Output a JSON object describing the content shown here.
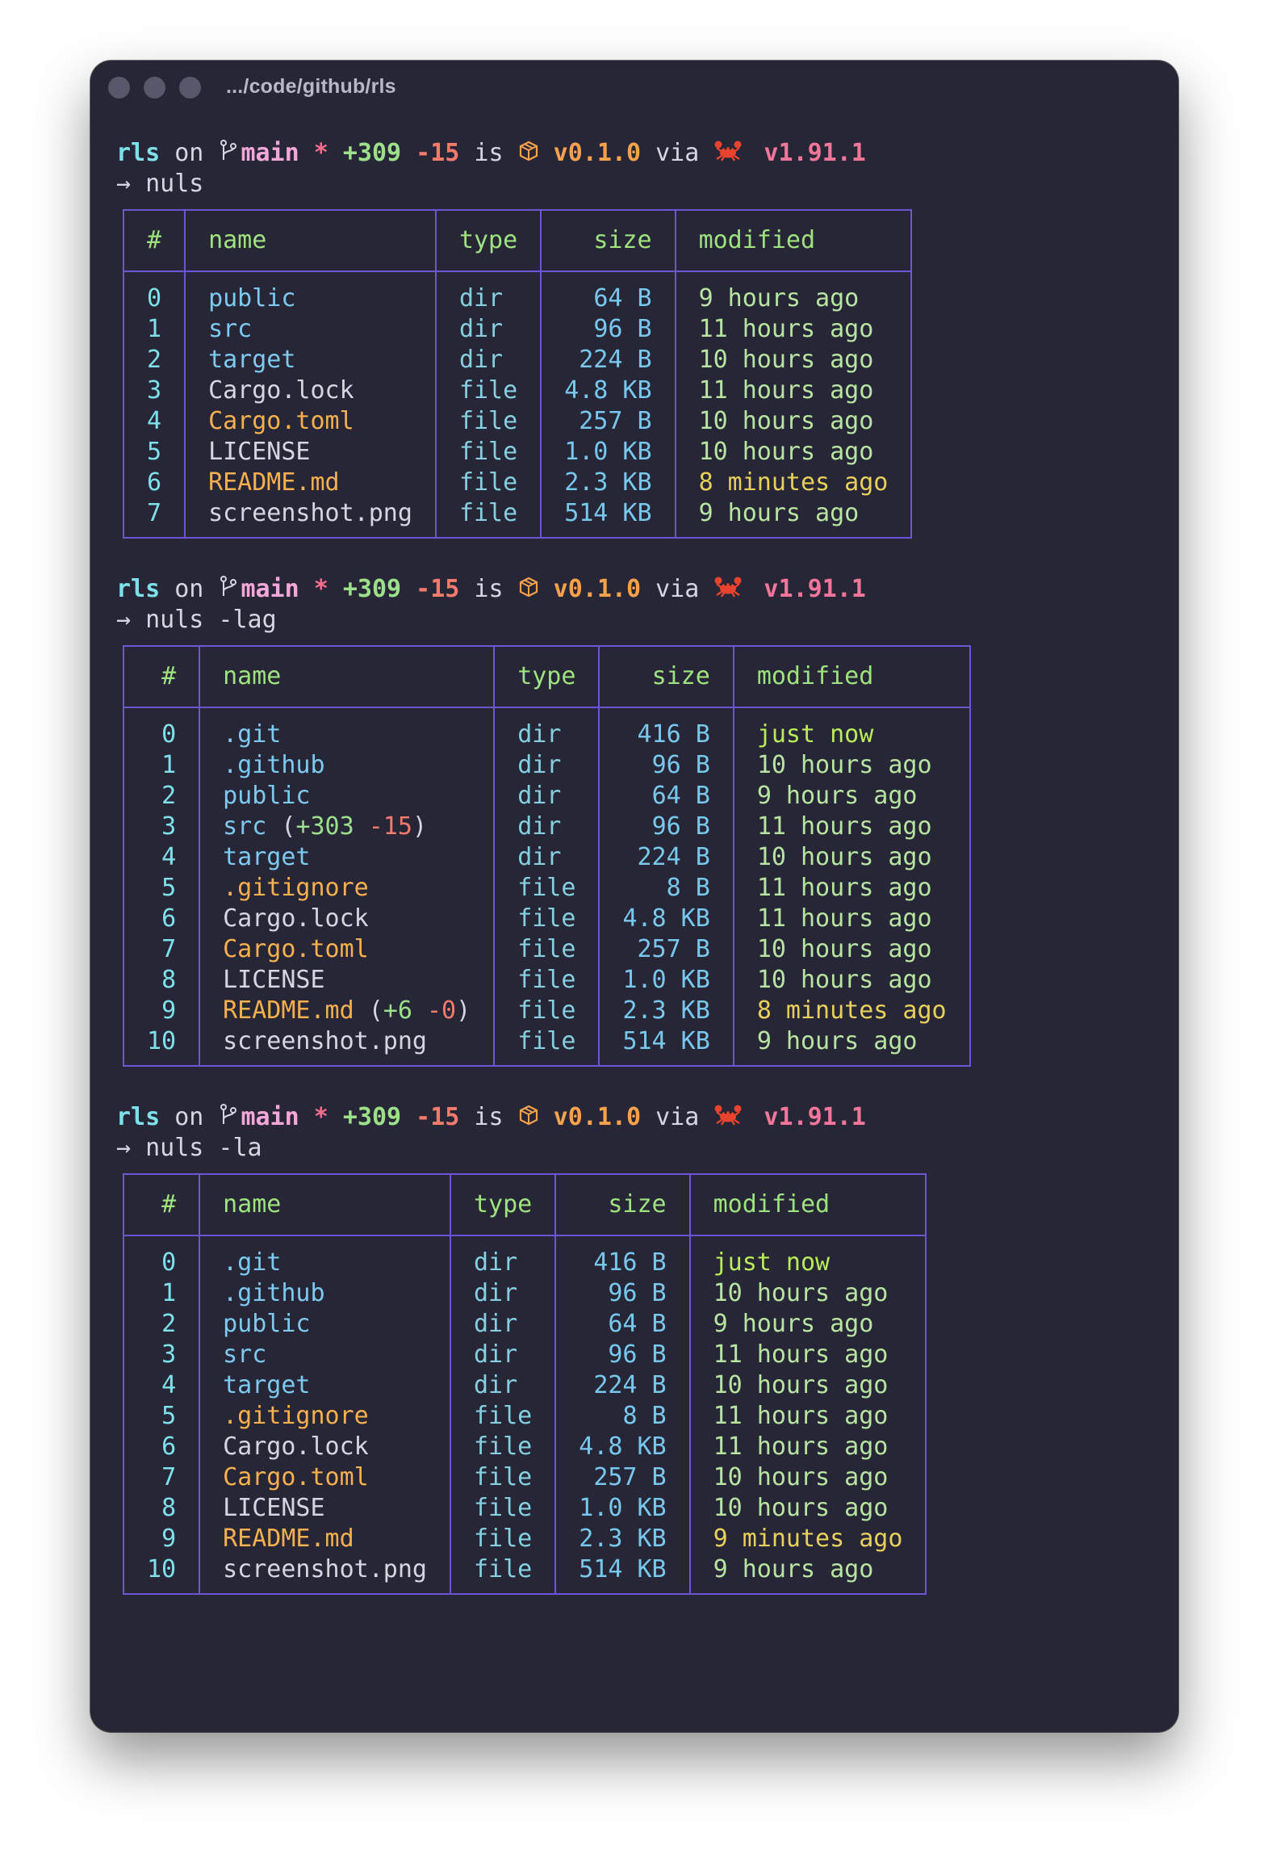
{
  "window": {
    "title": ".../code/github/rls",
    "buttons": [
      "close",
      "minimize",
      "zoom"
    ]
  },
  "prompt": {
    "dir": "rls",
    "on": "on",
    "branch": "main",
    "dirty": "*",
    "added": "+309",
    "removed": "-15",
    "is": "is",
    "pkg_version": "v0.1.0",
    "via": "via",
    "rust_version": "v1.91.1",
    "arrow": "→"
  },
  "headers": {
    "index": "#",
    "name": "name",
    "type": "type",
    "size": "size",
    "modified": "modified"
  },
  "blocks": [
    {
      "command": "nuls",
      "rows": [
        {
          "i": "0",
          "name": "public",
          "type": "dir",
          "size": "64 B",
          "modified": "9 hours ago",
          "nc": "dir",
          "mc": "green"
        },
        {
          "i": "1",
          "name": "src",
          "type": "dir",
          "size": "96 B",
          "modified": "11 hours ago",
          "nc": "dir",
          "mc": "green"
        },
        {
          "i": "2",
          "name": "target",
          "type": "dir",
          "size": "224 B",
          "modified": "10 hours ago",
          "nc": "dir",
          "mc": "green"
        },
        {
          "i": "3",
          "name": "Cargo.lock",
          "type": "file",
          "size": "4.8 KB",
          "modified": "11 hours ago",
          "nc": "plain",
          "mc": "green"
        },
        {
          "i": "4",
          "name": "Cargo.toml",
          "type": "file",
          "size": "257 B",
          "modified": "10 hours ago",
          "nc": "orange",
          "mc": "green"
        },
        {
          "i": "5",
          "name": "LICENSE",
          "type": "file",
          "size": "1.0 KB",
          "modified": "10 hours ago",
          "nc": "plain",
          "mc": "green"
        },
        {
          "i": "6",
          "name": "README.md",
          "type": "file",
          "size": "2.3 KB",
          "modified": "8 minutes ago",
          "nc": "orange",
          "mc": "yellow"
        },
        {
          "i": "7",
          "name": "screenshot.png",
          "type": "file",
          "size": "514 KB",
          "modified": "9 hours ago",
          "nc": "plain",
          "mc": "green"
        }
      ]
    },
    {
      "command": "nuls -lag",
      "rows": [
        {
          "i": "0",
          "name": ".git",
          "type": "dir",
          "size": "416 B",
          "modified": "just now",
          "nc": "dir",
          "mc": "bright"
        },
        {
          "i": "1",
          "name": ".github",
          "type": "dir",
          "size": "96 B",
          "modified": "10 hours ago",
          "nc": "dir",
          "mc": "green"
        },
        {
          "i": "2",
          "name": "public",
          "type": "dir",
          "size": "64 B",
          "modified": "9 hours ago",
          "nc": "dir",
          "mc": "green"
        },
        {
          "i": "3",
          "name": "src",
          "type": "dir",
          "size": "96 B",
          "modified": "11 hours ago",
          "nc": "dir",
          "mc": "green",
          "diff_add": "+303",
          "diff_del": "-15"
        },
        {
          "i": "4",
          "name": "target",
          "type": "dir",
          "size": "224 B",
          "modified": "10 hours ago",
          "nc": "dir",
          "mc": "green"
        },
        {
          "i": "5",
          "name": ".gitignore",
          "type": "file",
          "size": "8 B",
          "modified": "11 hours ago",
          "nc": "orange",
          "mc": "green"
        },
        {
          "i": "6",
          "name": "Cargo.lock",
          "type": "file",
          "size": "4.8 KB",
          "modified": "11 hours ago",
          "nc": "plain",
          "mc": "green"
        },
        {
          "i": "7",
          "name": "Cargo.toml",
          "type": "file",
          "size": "257 B",
          "modified": "10 hours ago",
          "nc": "orange",
          "mc": "green"
        },
        {
          "i": "8",
          "name": "LICENSE",
          "type": "file",
          "size": "1.0 KB",
          "modified": "10 hours ago",
          "nc": "plain",
          "mc": "green"
        },
        {
          "i": "9",
          "name": "README.md",
          "type": "file",
          "size": "2.3 KB",
          "modified": "8 minutes ago",
          "nc": "orange",
          "mc": "yellow",
          "diff_add": "+6",
          "diff_del": "-0"
        },
        {
          "i": "10",
          "name": "screenshot.png",
          "type": "file",
          "size": "514 KB",
          "modified": "9 hours ago",
          "nc": "plain",
          "mc": "green"
        }
      ]
    },
    {
      "command": "nuls -la",
      "rows": [
        {
          "i": "0",
          "name": ".git",
          "type": "dir",
          "size": "416 B",
          "modified": "just now",
          "nc": "dir",
          "mc": "bright"
        },
        {
          "i": "1",
          "name": ".github",
          "type": "dir",
          "size": "96 B",
          "modified": "10 hours ago",
          "nc": "dir",
          "mc": "green"
        },
        {
          "i": "2",
          "name": "public",
          "type": "dir",
          "size": "64 B",
          "modified": "9 hours ago",
          "nc": "dir",
          "mc": "green"
        },
        {
          "i": "3",
          "name": "src",
          "type": "dir",
          "size": "96 B",
          "modified": "11 hours ago",
          "nc": "dir",
          "mc": "green"
        },
        {
          "i": "4",
          "name": "target",
          "type": "dir",
          "size": "224 B",
          "modified": "10 hours ago",
          "nc": "dir",
          "mc": "green"
        },
        {
          "i": "5",
          "name": ".gitignore",
          "type": "file",
          "size": "8 B",
          "modified": "11 hours ago",
          "nc": "orange",
          "mc": "green"
        },
        {
          "i": "6",
          "name": "Cargo.lock",
          "type": "file",
          "size": "4.8 KB",
          "modified": "11 hours ago",
          "nc": "plain",
          "mc": "green"
        },
        {
          "i": "7",
          "name": "Cargo.toml",
          "type": "file",
          "size": "257 B",
          "modified": "10 hours ago",
          "nc": "orange",
          "mc": "green"
        },
        {
          "i": "8",
          "name": "LICENSE",
          "type": "file",
          "size": "1.0 KB",
          "modified": "10 hours ago",
          "nc": "plain",
          "mc": "green"
        },
        {
          "i": "9",
          "name": "README.md",
          "type": "file",
          "size": "2.3 KB",
          "modified": "9 minutes ago",
          "nc": "orange",
          "mc": "yellow"
        },
        {
          "i": "10",
          "name": "screenshot.png",
          "type": "file",
          "size": "514 KB",
          "modified": "9 hours ago",
          "nc": "plain",
          "mc": "green"
        }
      ]
    }
  ],
  "colors": {
    "background": "#262637",
    "table_border": "#6e55d6",
    "header_text": "#9ee37d",
    "dir_name": "#7ec9ef",
    "special_file": "#f6b04e"
  }
}
